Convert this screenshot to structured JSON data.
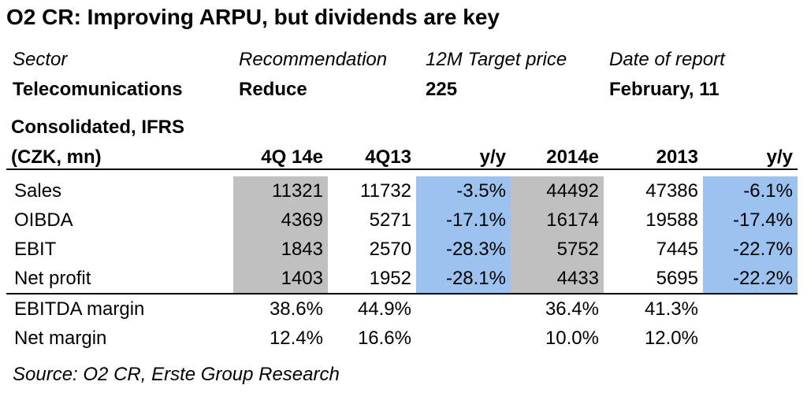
{
  "title": "O2 CR: Improving ARPU, but dividends are key",
  "meta": {
    "labels": [
      "Sector",
      "Recommendation",
      "12M Target price",
      "Date of report"
    ],
    "values": [
      "Telecomunications",
      "Reduce",
      "225",
      "February, 11"
    ]
  },
  "table": {
    "header_line1": "Consolidated, IFRS",
    "header_line2": "(CZK, mn)",
    "columns": [
      "4Q 14e",
      "4Q13",
      "y/y",
      "2014e",
      "2013",
      "y/y"
    ],
    "rows": [
      {
        "label": "Sales",
        "values": [
          "11321",
          "11732",
          "-3.5%",
          "44492",
          "47386",
          "-6.1%"
        ]
      },
      {
        "label": "OIBDA",
        "values": [
          "4369",
          "5271",
          "-17.1%",
          "16174",
          "19588",
          "-17.4%"
        ]
      },
      {
        "label": "EBIT",
        "values": [
          "1843",
          "2570",
          "-28.3%",
          "5752",
          "7445",
          "-22.7%"
        ]
      },
      {
        "label": "Net profit",
        "values": [
          "1403",
          "1952",
          "-28.1%",
          "4433",
          "5695",
          "-22.2%"
        ]
      },
      {
        "label": "EBITDA margin",
        "values": [
          "38.6%",
          "44.9%",
          "",
          "36.4%",
          "41.3%",
          ""
        ]
      },
      {
        "label": "Net margin",
        "values": [
          "12.4%",
          "16.6%",
          "",
          "10.0%",
          "12.0%",
          ""
        ]
      }
    ]
  },
  "colors": {
    "gray_highlight": "#c0c0c0",
    "blue_highlight": "#9cc3f0"
  },
  "source": "Source: O2 CR, Erste Group Research"
}
